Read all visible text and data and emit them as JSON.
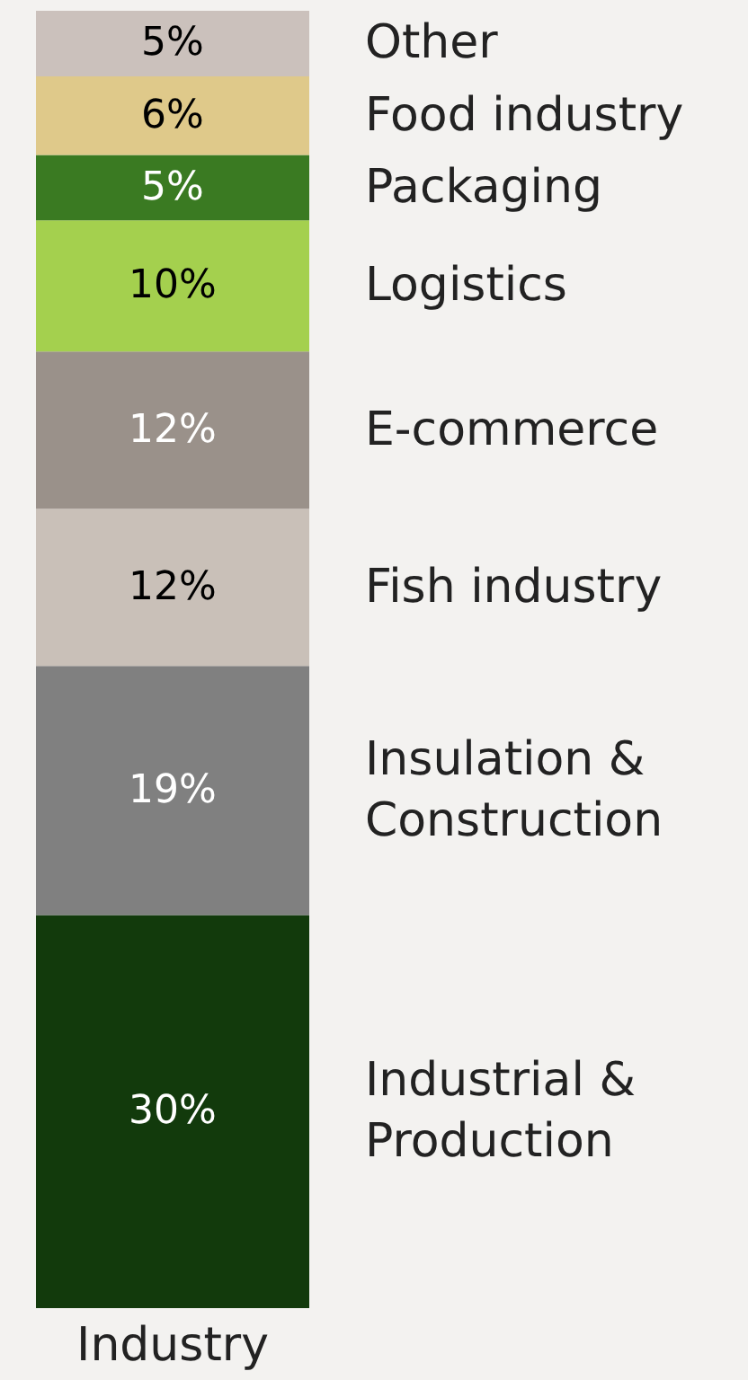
{
  "chart_data": {
    "type": "bar",
    "stacked": true,
    "categories": [
      "Industry"
    ],
    "series": [
      {
        "name": "Industrial & Production",
        "color": "#123a0c",
        "values": [
          30
        ],
        "value_labels": [
          "30%"
        ]
      },
      {
        "name": "Insulation & Construction",
        "color": "#808080",
        "values": [
          19
        ],
        "value_labels": [
          "19%"
        ]
      },
      {
        "name": "Fish industry",
        "color": "#c9c0b8",
        "values": [
          12
        ],
        "value_labels": [
          "12%"
        ]
      },
      {
        "name": "E-commerce",
        "color": "#9a918a",
        "values": [
          12
        ],
        "value_labels": [
          "12%"
        ]
      },
      {
        "name": "Logistics",
        "color": "#a4d04e",
        "values": [
          10
        ],
        "value_labels": [
          "10%"
        ]
      },
      {
        "name": "Packaging",
        "color": "#3a7a22",
        "values": [
          5
        ],
        "value_labels": [
          "5%"
        ]
      },
      {
        "name": "Food industry",
        "color": "#dfc98a",
        "values": [
          6
        ],
        "value_labels": [
          "6%"
        ]
      },
      {
        "name": "Other",
        "color": "#cbc1bc",
        "values": [
          5
        ],
        "value_labels": [
          "5%"
        ]
      }
    ]
  }
}
